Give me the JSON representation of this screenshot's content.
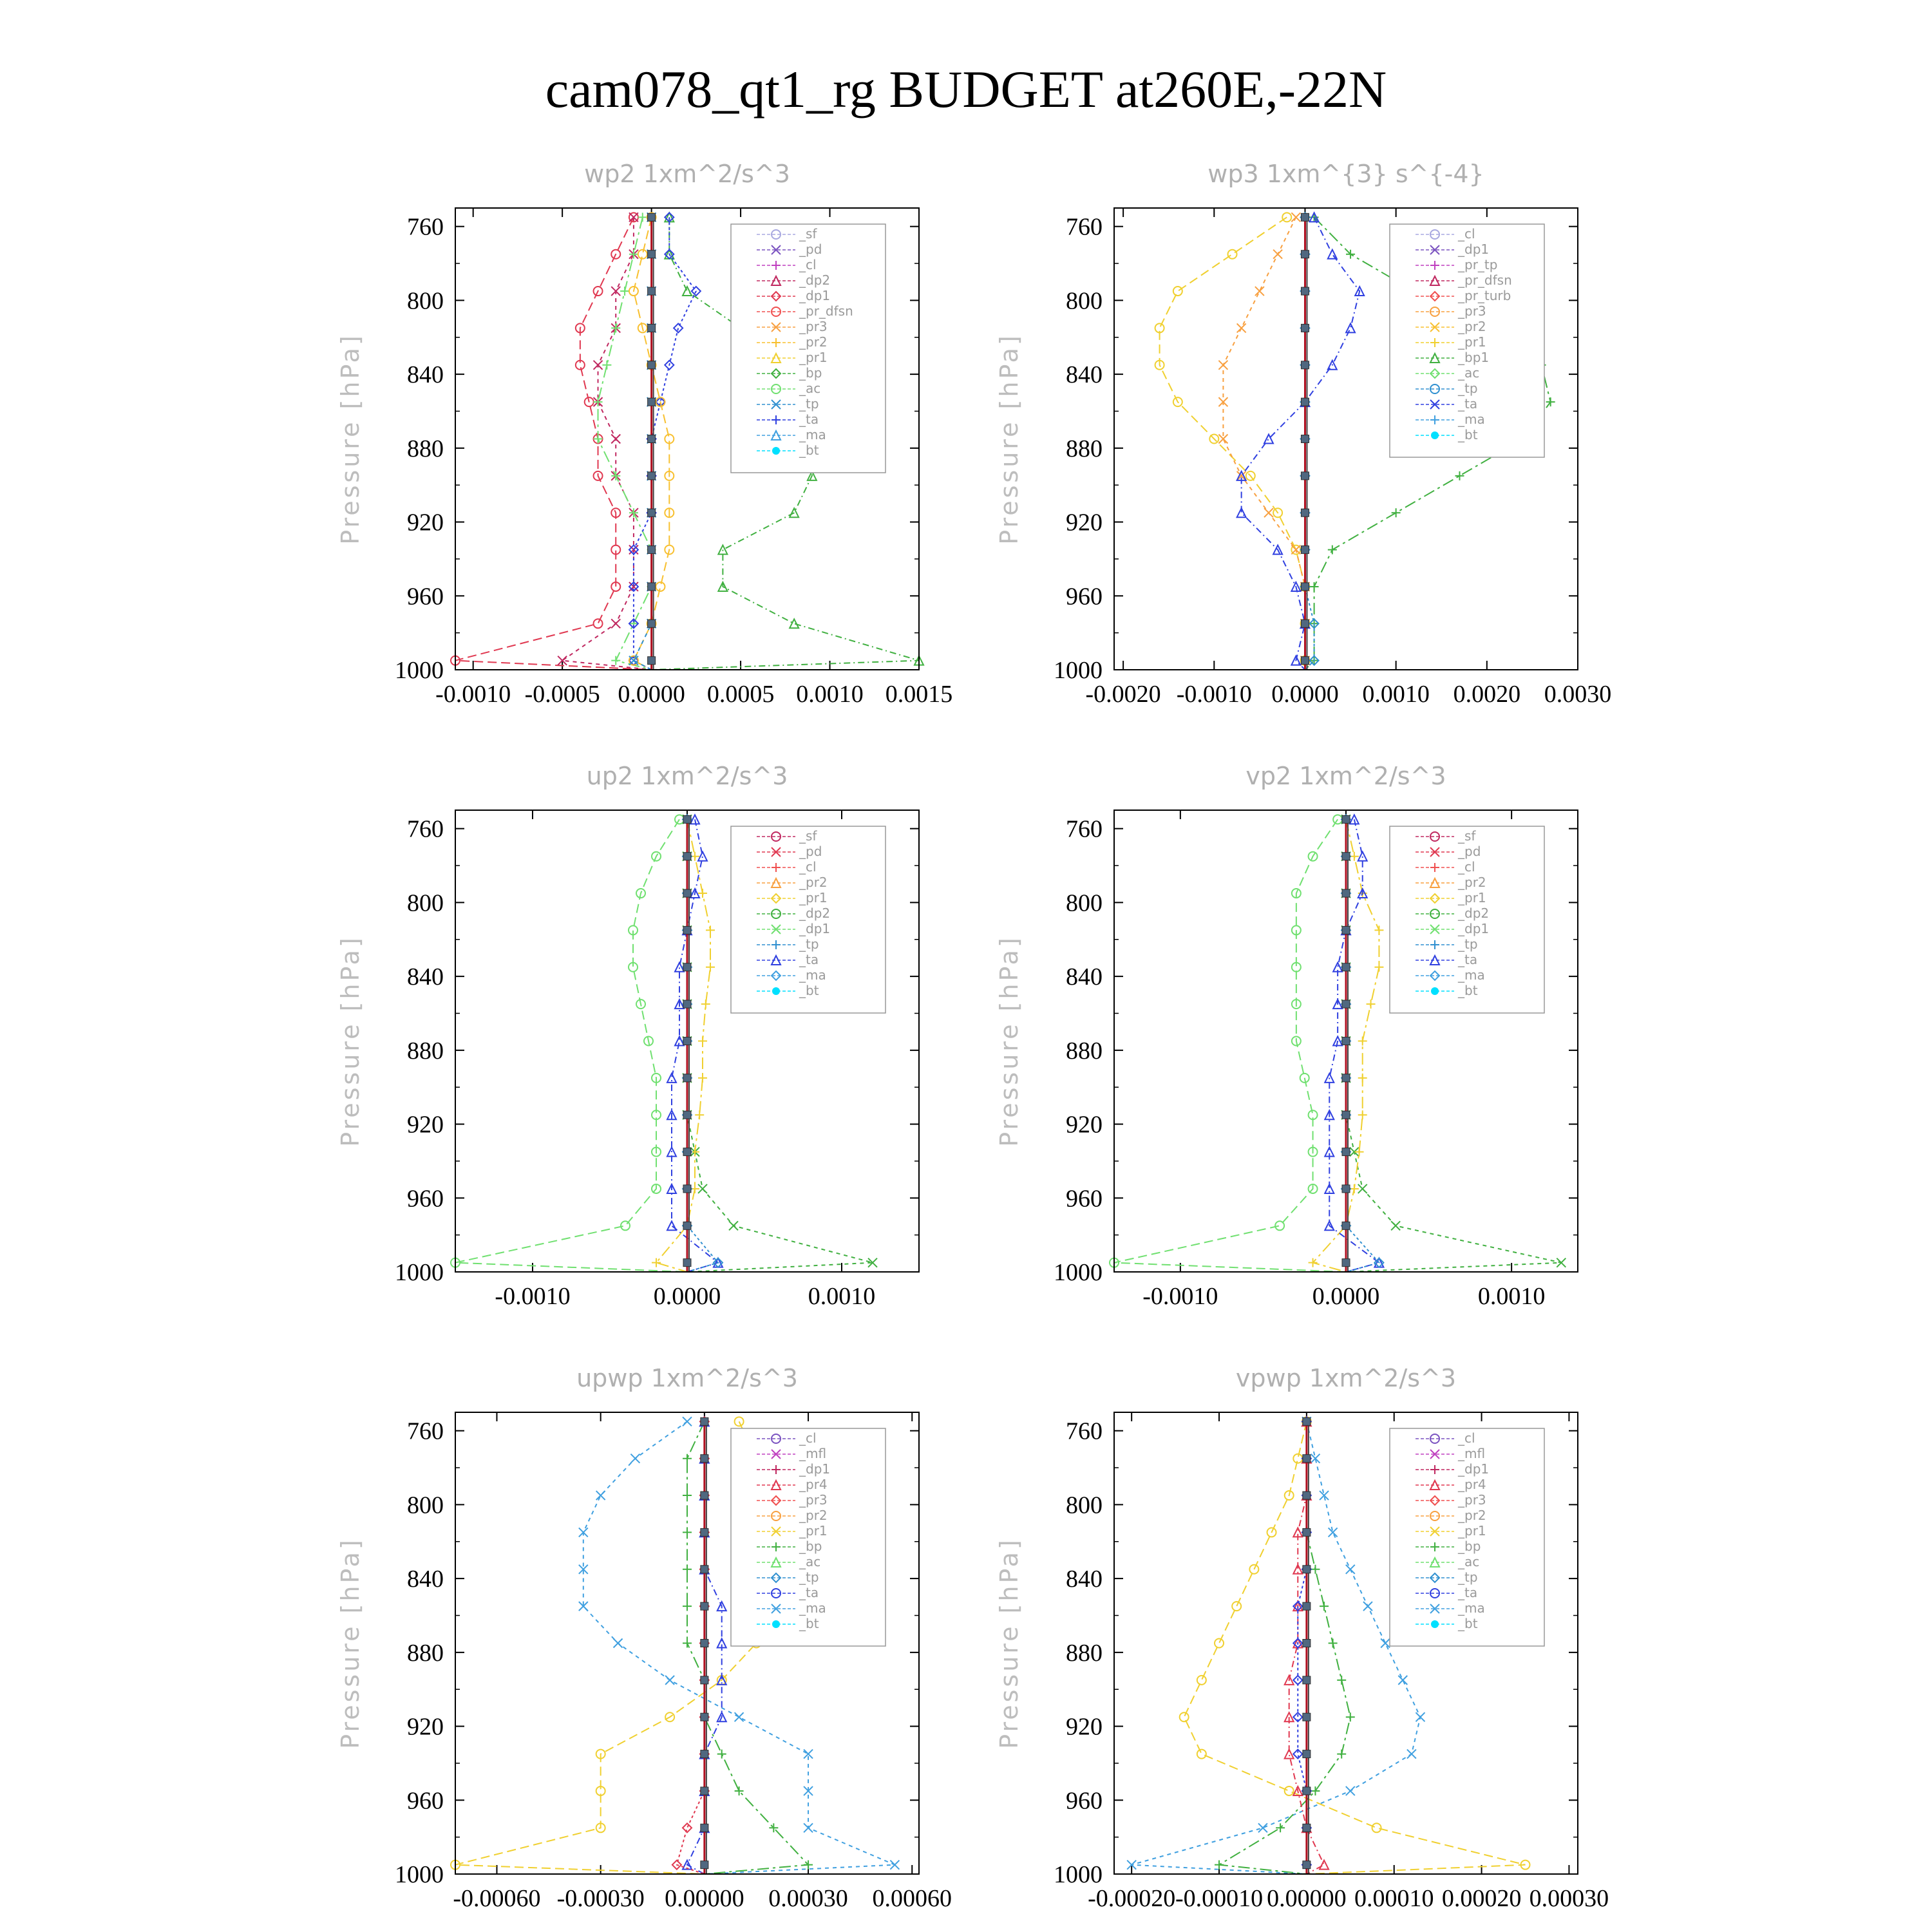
{
  "title": "cam078_qt1_rg  BUDGET at260E,-22N",
  "colors": {
    "sf": "#a8a8e0",
    "pd": "#7a52c0",
    "cl": "#c040c0",
    "dp2": "#c02860",
    "dp1": "#e03850",
    "prd": "#f05050",
    "pr3": "#f8a040",
    "pr2": "#f8c030",
    "pr1": "#f0d030",
    "bp1": "#40b040",
    "bp": "#70e070",
    "ac": "#70e070",
    "tp": "#3090d0",
    "ta": "#3040e0",
    "ma": "#40a0e0",
    "bt": "#00e0ff",
    "mfl": "#c040c0",
    "pr4": "#e03850"
  },
  "chart_data": [
    {
      "type": "line",
      "title": "wp2   1xm^2/s^3",
      "ylabel": "Pressure  [hPa]",
      "ylim": [
        1000,
        750
      ],
      "yticks": [
        "760",
        "800",
        "840",
        "880",
        "920",
        "960",
        "1000"
      ],
      "xlim": [
        -0.0011,
        0.0015
      ],
      "xticks": [
        {
          "v": -0.001,
          "t": "-0.0010"
        },
        {
          "v": -0.0005,
          "t": "-0.0005"
        },
        {
          "v": 0,
          "t": "0.0000"
        },
        {
          "v": 0.0005,
          "t": "0.0005"
        },
        {
          "v": 0.001,
          "t": "0.0010"
        },
        {
          "v": 0.0015,
          "t": "0.0015"
        }
      ],
      "legend": [
        "_sf",
        "_pd",
        "_cl",
        "_dp2",
        "_dp1",
        "_pr_dfsn",
        "_pr3",
        "_pr2",
        "_pr1",
        "_bp",
        "_ac",
        "_tp",
        "_ta",
        "_ma",
        "_bt"
      ],
      "legend_keys": [
        "sf",
        "pd",
        "cl",
        "dp2",
        "dp1",
        "prd",
        "pr3",
        "pr2",
        "pr1",
        "bp1",
        "bp",
        "tp",
        "ta",
        "ma",
        "bt"
      ],
      "levels": [
        755,
        775,
        795,
        815,
        835,
        855,
        875,
        895,
        915,
        935,
        955,
        975,
        995,
        1000
      ],
      "series": [
        {
          "k": "dp1",
          "x": [
            -0.0001,
            -0.0002,
            -0.0003,
            -0.0004,
            -0.0004,
            -0.00035,
            -0.0003,
            -0.0003,
            -0.0002,
            -0.0002,
            -0.0002,
            -0.0003,
            -0.0011,
            0
          ]
        },
        {
          "k": "dp2",
          "x": [
            -0.0001,
            -0.0001,
            -0.0002,
            -0.0002,
            -0.0003,
            -0.0003,
            -0.0002,
            -0.0002,
            -0.0001,
            -0.0001,
            -0.0001,
            -0.0002,
            -0.0005,
            0
          ]
        },
        {
          "k": "bp",
          "x": [
            -5e-05,
            -0.0001,
            -0.00015,
            -0.0002,
            -0.00025,
            -0.0003,
            -0.0003,
            -0.0002,
            -0.0001,
            0,
            0,
            -0.0001,
            -0.0002,
            0
          ]
        },
        {
          "k": "bp1",
          "x": [
            0.0001,
            0.0001,
            0.0002,
            0.0005,
            0.0007,
            0.0008,
            0.0009,
            0.0009,
            0.0008,
            0.0004,
            0.0004,
            0.0008,
            0.0015,
            0
          ]
        },
        {
          "k": "ta",
          "x": [
            0.0001,
            0.0001,
            0.00025,
            0.00015,
            0.0001,
            5e-05,
            0,
            0,
            0,
            -0.0001,
            -0.0001,
            -0.0001,
            -0.0001,
            0
          ]
        },
        {
          "k": "pr2",
          "x": [
            0,
            -5e-05,
            -0.0001,
            -5e-05,
            0,
            5e-05,
            0.0001,
            0.0001,
            0.0001,
            0.0001,
            5e-05,
            0,
            -0.0001,
            0
          ]
        },
        {
          "k": "tp",
          "x": [
            0,
            0,
            0,
            0,
            0,
            0,
            0,
            0,
            0,
            0,
            0,
            0,
            -0.0001,
            0
          ]
        }
      ]
    },
    {
      "type": "line",
      "title": "wp3   1xm^{3} s^{-4}",
      "ylabel": "Pressure  [hPa]",
      "ylim": [
        1000,
        750
      ],
      "yticks": [
        "760",
        "800",
        "840",
        "880",
        "920",
        "960",
        "1000"
      ],
      "xlim": [
        -0.0021,
        0.003
      ],
      "xticks": [
        {
          "v": -0.002,
          "t": "-0.0020"
        },
        {
          "v": -0.001,
          "t": "-0.0010"
        },
        {
          "v": 0,
          "t": "0.0000"
        },
        {
          "v": 0.001,
          "t": "0.0010"
        },
        {
          "v": 0.002,
          "t": "0.0020"
        },
        {
          "v": 0.003,
          "t": "0.0030"
        }
      ],
      "legend": [
        "_cl",
        "_dp1",
        "_pr_tp",
        "_pr_dfsn",
        "_pr_turb",
        "_pr3",
        "_pr2",
        "_pr1",
        "_bp1",
        "_ac",
        "_tp",
        "_ta",
        "_ma",
        "_bt"
      ],
      "legend_keys": [
        "sf",
        "pd",
        "cl",
        "dp2",
        "prd",
        "pr3",
        "pr2",
        "pr1",
        "bp1",
        "bp",
        "tp",
        "ta",
        "ma",
        "bt"
      ],
      "levels": [
        755,
        775,
        795,
        815,
        835,
        855,
        875,
        895,
        915,
        935,
        955,
        975,
        995,
        1000
      ],
      "series": [
        {
          "k": "pr1",
          "x": [
            -0.0002,
            -0.0008,
            -0.0014,
            -0.0016,
            -0.0016,
            -0.0014,
            -0.001,
            -0.0006,
            -0.0003,
            -0.0001,
            0,
            0,
            0,
            0
          ]
        },
        {
          "k": "pr3",
          "x": [
            -0.0001,
            -0.0003,
            -0.0005,
            -0.0007,
            -0.0009,
            -0.0009,
            -0.0009,
            -0.0007,
            -0.0004,
            -0.0001,
            0,
            0,
            0,
            0
          ]
        },
        {
          "k": "bp1",
          "x": [
            0.0001,
            0.0005,
            0.0012,
            0.002,
            0.0026,
            0.0027,
            0.0024,
            0.0017,
            0.001,
            0.0003,
            0.0001,
            0.0001,
            0.0001,
            0
          ]
        },
        {
          "k": "ta",
          "x": [
            0.0001,
            0.0003,
            0.0006,
            0.0005,
            0.0003,
            0,
            -0.0004,
            -0.0007,
            -0.0007,
            -0.0003,
            -0.0001,
            0,
            -0.0001,
            0
          ]
        },
        {
          "k": "tp",
          "x": [
            0,
            0,
            0,
            0,
            0,
            0,
            0,
            0,
            0,
            0,
            0,
            0.0001,
            0.0001,
            0
          ]
        }
      ]
    },
    {
      "type": "line",
      "title": "up2   1xm^2/s^3",
      "ylabel": "Pressure  [hPa]",
      "ylim": [
        1000,
        750
      ],
      "yticks": [
        "760",
        "800",
        "840",
        "880",
        "920",
        "960",
        "1000"
      ],
      "xlim": [
        -0.0015,
        0.0015
      ],
      "xticks": [
        {
          "v": -0.001,
          "t": "-0.0010"
        },
        {
          "v": 0,
          "t": "0.0000"
        },
        {
          "v": 0.001,
          "t": "0.0010"
        }
      ],
      "legend": [
        "_sf",
        "_pd",
        "_cl",
        "_pr2",
        "_pr1",
        "_dp2",
        "_dp1",
        "_tp",
        "_ta",
        "_ma",
        "_bt"
      ],
      "legend_keys": [
        "dp2",
        "dp1",
        "prd",
        "pr3",
        "pr1",
        "bp1",
        "bp",
        "tp",
        "ta",
        "ma",
        "bt"
      ],
      "levels": [
        755,
        775,
        795,
        815,
        835,
        855,
        875,
        895,
        915,
        935,
        955,
        975,
        995,
        1000
      ],
      "series": [
        {
          "k": "bp",
          "x": [
            -5e-05,
            -0.0002,
            -0.0003,
            -0.00035,
            -0.00035,
            -0.0003,
            -0.00025,
            -0.0002,
            -0.0002,
            -0.0002,
            -0.0002,
            -0.0004,
            -0.0015,
            0
          ]
        },
        {
          "k": "bp1",
          "x": [
            0,
            0,
            0,
            0,
            0,
            0,
            0,
            0,
            0,
            5e-05,
            0.0001,
            0.0003,
            0.0012,
            0
          ]
        },
        {
          "k": "pr1",
          "x": [
            0,
            5e-05,
            0.0001,
            0.00015,
            0.00015,
            0.00012,
            0.0001,
            0.0001,
            8e-05,
            5e-05,
            5e-05,
            0,
            -0.0002,
            0
          ]
        },
        {
          "k": "ta",
          "x": [
            5e-05,
            0.0001,
            5e-05,
            0,
            -5e-05,
            -5e-05,
            -5e-05,
            -0.0001,
            -0.0001,
            -0.0001,
            -0.0001,
            -0.0001,
            0.0002,
            0
          ]
        },
        {
          "k": "tp",
          "x": [
            0,
            0,
            0,
            0,
            0,
            0,
            0,
            0,
            0,
            0,
            0,
            0,
            0.0002,
            0
          ]
        }
      ]
    },
    {
      "type": "line",
      "title": "vp2   1xm^2/s^3",
      "ylabel": "Pressure  [hPa]",
      "ylim": [
        1000,
        750
      ],
      "yticks": [
        "760",
        "800",
        "840",
        "880",
        "920",
        "960",
        "1000"
      ],
      "xlim": [
        -0.0014,
        0.0014
      ],
      "xticks": [
        {
          "v": -0.001,
          "t": "-0.0010"
        },
        {
          "v": 0,
          "t": "0.0000"
        },
        {
          "v": 0.001,
          "t": "0.0010"
        }
      ],
      "legend": [
        "_sf",
        "_pd",
        "_cl",
        "_pr2",
        "_pr1",
        "_dp2",
        "_dp1",
        "_tp",
        "_ta",
        "_ma",
        "_bt"
      ],
      "legend_keys": [
        "dp2",
        "dp1",
        "prd",
        "pr3",
        "pr1",
        "bp1",
        "bp",
        "tp",
        "ta",
        "ma",
        "bt"
      ],
      "levels": [
        755,
        775,
        795,
        815,
        835,
        855,
        875,
        895,
        915,
        935,
        955,
        975,
        995,
        1000
      ],
      "series": [
        {
          "k": "bp",
          "x": [
            -5e-05,
            -0.0002,
            -0.0003,
            -0.0003,
            -0.0003,
            -0.0003,
            -0.0003,
            -0.00025,
            -0.0002,
            -0.0002,
            -0.0002,
            -0.0004,
            -0.0014,
            0
          ]
        },
        {
          "k": "bp1",
          "x": [
            0,
            0,
            0,
            0,
            0,
            0,
            0,
            0,
            0,
            5e-05,
            0.0001,
            0.0003,
            0.0013,
            0
          ]
        },
        {
          "k": "pr1",
          "x": [
            0,
            5e-05,
            0.0001,
            0.0002,
            0.0002,
            0.00015,
            0.0001,
            0.0001,
            0.0001,
            8e-05,
            5e-05,
            0,
            -0.0002,
            0
          ]
        },
        {
          "k": "ta",
          "x": [
            5e-05,
            0.0001,
            0.0001,
            0,
            -5e-05,
            -5e-05,
            -5e-05,
            -0.0001,
            -0.0001,
            -0.0001,
            -0.0001,
            -0.0001,
            0.0002,
            0
          ]
        },
        {
          "k": "tp",
          "x": [
            0,
            0,
            0,
            0,
            0,
            0,
            0,
            0,
            0,
            0,
            0,
            0,
            0.0002,
            0
          ]
        }
      ]
    },
    {
      "type": "line",
      "title": "upwp   1xm^2/s^3",
      "ylabel": "Pressure  [hPa]",
      "ylim": [
        1000,
        750
      ],
      "yticks": [
        "760",
        "800",
        "840",
        "880",
        "920",
        "960",
        "1000"
      ],
      "xlim": [
        -0.00072,
        0.00062
      ],
      "xticks": [
        {
          "v": -0.0006,
          "t": "-0.00060"
        },
        {
          "v": -0.0003,
          "t": "-0.00030"
        },
        {
          "v": 0,
          "t": "0.00000"
        },
        {
          "v": 0.0003,
          "t": "0.00030"
        },
        {
          "v": 0.0006,
          "t": "0.00060"
        }
      ],
      "legend": [
        "_cl",
        "_mfl",
        "_dp1",
        "_pr4",
        "_pr3",
        "_pr2",
        "_pr1",
        "_bp",
        "_ac",
        "_tp",
        "_ta",
        "_ma",
        "_bt"
      ],
      "legend_keys": [
        "pd",
        "cl",
        "dp2",
        "dp1",
        "prd",
        "pr3",
        "pr1",
        "bp1",
        "bp",
        "tp",
        "ta",
        "ma",
        "bt"
      ],
      "levels": [
        755,
        775,
        795,
        815,
        835,
        855,
        875,
        895,
        915,
        935,
        955,
        975,
        995,
        1000
      ],
      "series": [
        {
          "k": "pr1",
          "x": [
            0.0001,
            0.00015,
            0.0002,
            0.00025,
            0.00025,
            0.0002,
            0.00015,
            5e-05,
            -0.0001,
            -0.0003,
            -0.0003,
            -0.0003,
            -0.00072,
            0
          ]
        },
        {
          "k": "ma",
          "x": [
            -5e-05,
            -0.0002,
            -0.0003,
            -0.00035,
            -0.00035,
            -0.00035,
            -0.00025,
            -0.0001,
            0.0001,
            0.0003,
            0.0003,
            0.0003,
            0.00055,
            0
          ]
        },
        {
          "k": "bp1",
          "x": [
            0,
            -5e-05,
            -5e-05,
            -5e-05,
            -5e-05,
            -5e-05,
            -5e-05,
            0,
            0,
            5e-05,
            0.0001,
            0.0002,
            0.0003,
            0
          ]
        },
        {
          "k": "ta",
          "x": [
            0,
            0,
            0,
            0,
            0,
            5e-05,
            5e-05,
            5e-05,
            5e-05,
            0,
            0,
            0,
            -5e-05,
            0
          ]
        },
        {
          "k": "dp1",
          "x": [
            0,
            0,
            0,
            0,
            0,
            0,
            0,
            0,
            0,
            0,
            0,
            -5e-05,
            -8e-05,
            0
          ]
        }
      ]
    },
    {
      "type": "line",
      "title": "vpwp   1xm^2/s^3",
      "ylabel": "Pressure  [hPa]",
      "ylim": [
        1000,
        750
      ],
      "yticks": [
        "760",
        "800",
        "840",
        "880",
        "920",
        "960",
        "1000"
      ],
      "xlim": [
        -0.00022,
        0.00031
      ],
      "xticks": [
        {
          "v": -0.0002,
          "t": "-0.00020"
        },
        {
          "v": -0.0001,
          "t": "-0.00010"
        },
        {
          "v": 0,
          "t": "0.00000"
        },
        {
          "v": 0.0001,
          "t": "0.00010"
        },
        {
          "v": 0.0002,
          "t": "0.00020"
        },
        {
          "v": 0.0003,
          "t": "0.00030"
        }
      ],
      "legend": [
        "_cl",
        "_mfl",
        "_dp1",
        "_pr4",
        "_pr3",
        "_pr2",
        "_pr1",
        "_bp",
        "_ac",
        "_tp",
        "_ta",
        "_ma",
        "_bt"
      ],
      "legend_keys": [
        "pd",
        "cl",
        "dp2",
        "dp1",
        "prd",
        "pr3",
        "pr1",
        "bp1",
        "bp",
        "tp",
        "ta",
        "ma",
        "bt"
      ],
      "levels": [
        755,
        775,
        795,
        815,
        835,
        855,
        875,
        895,
        915,
        935,
        955,
        975,
        995,
        1000
      ],
      "series": [
        {
          "k": "pr1",
          "x": [
            0,
            -1e-05,
            -2e-05,
            -4e-05,
            -6e-05,
            -8e-05,
            -0.0001,
            -0.00012,
            -0.00014,
            -0.00012,
            -2e-05,
            8e-05,
            0.00025,
            0
          ]
        },
        {
          "k": "ma",
          "x": [
            0,
            1e-05,
            2e-05,
            3e-05,
            5e-05,
            7e-05,
            9e-05,
            0.00011,
            0.00013,
            0.00012,
            5e-05,
            -5e-05,
            -0.0002,
            0
          ]
        },
        {
          "k": "bp1",
          "x": [
            0,
            0,
            0,
            0,
            1e-05,
            2e-05,
            3e-05,
            4e-05,
            5e-05,
            4e-05,
            1e-05,
            -3e-05,
            -0.0001,
            0
          ]
        },
        {
          "k": "dp1",
          "x": [
            0,
            0,
            0,
            -1e-05,
            -1e-05,
            -1e-05,
            -1e-05,
            -2e-05,
            -2e-05,
            -2e-05,
            -1e-05,
            0,
            2e-05,
            0
          ]
        },
        {
          "k": "ta",
          "x": [
            0,
            0,
            0,
            0,
            0,
            -1e-05,
            -1e-05,
            -1e-05,
            -1e-05,
            -1e-05,
            0,
            0,
            0,
            0
          ]
        }
      ]
    }
  ]
}
